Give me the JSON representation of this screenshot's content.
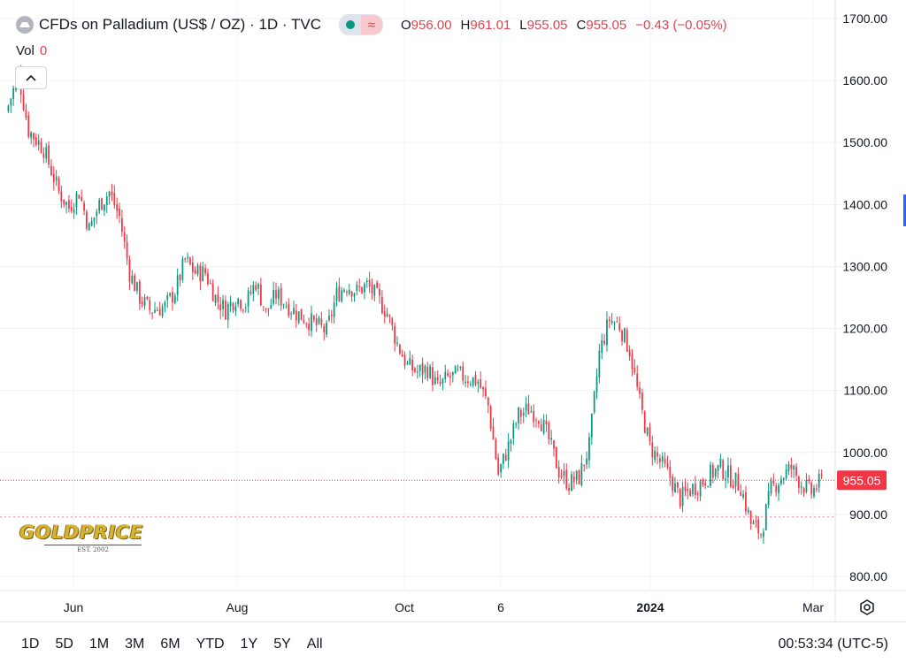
{
  "header": {
    "title": "CFDs on Palladium (US$ / OZ) · 1D · TVC",
    "ohlc": [
      {
        "label": "O",
        "value": "956.00"
      },
      {
        "label": "H",
        "value": "961.01"
      },
      {
        "label": "L",
        "value": "955.05"
      },
      {
        "label": "C",
        "value": "955.05"
      }
    ],
    "change": "−0.43 (−0.05%)",
    "vol_label": "Vol",
    "vol_value": "0"
  },
  "logo": {
    "name": "GOLDPRICE",
    "tagline": "EST. 2002"
  },
  "bottom": {
    "ranges": [
      "1D",
      "5D",
      "1M",
      "3M",
      "6M",
      "YTD",
      "1Y",
      "5Y",
      "All"
    ],
    "clock": "00:53:34 (UTC-5)"
  },
  "colors": {
    "up": "#089981",
    "down": "#f23645",
    "last_price": "#f23645",
    "accent": "#2962ff"
  },
  "chart_data": {
    "type": "candlestick",
    "symbol": "CFDs on Palladium (US$ / OZ)",
    "interval": "1D",
    "ylim": [
      780,
      1710
    ],
    "yticks": [
      800,
      900,
      1000,
      1100,
      1200,
      1300,
      1400,
      1500,
      1600,
      1700
    ],
    "ytick_labels": [
      "800.00",
      "900.00",
      "1000.00",
      "1100.00",
      "1200.00",
      "1300.00",
      "1400.00",
      "1500.00",
      "1600.00",
      "1700.00"
    ],
    "xticks": [
      "Jun",
      "Aug",
      "Oct",
      "6",
      "2024",
      "Mar"
    ],
    "last_price": 955.05,
    "last_price_label": "955.05",
    "reference_line": 896,
    "close_path": [
      [
        0,
        1560
      ],
      [
        4,
        1610
      ],
      [
        8,
        1520
      ],
      [
        14,
        1490
      ],
      [
        20,
        1420
      ],
      [
        24,
        1395
      ],
      [
        28,
        1420
      ],
      [
        32,
        1360
      ],
      [
        36,
        1400
      ],
      [
        40,
        1420
      ],
      [
        44,
        1380
      ],
      [
        48,
        1290
      ],
      [
        52,
        1250
      ],
      [
        56,
        1230
      ],
      [
        62,
        1235
      ],
      [
        66,
        1260
      ],
      [
        70,
        1310
      ],
      [
        74,
        1290
      ],
      [
        78,
        1290
      ],
      [
        82,
        1250
      ],
      [
        86,
        1230
      ],
      [
        90,
        1250
      ],
      [
        94,
        1240
      ],
      [
        98,
        1275
      ],
      [
        102,
        1225
      ],
      [
        106,
        1255
      ],
      [
        110,
        1240
      ],
      [
        114,
        1225
      ],
      [
        118,
        1215
      ],
      [
        122,
        1205
      ],
      [
        126,
        1195
      ],
      [
        130,
        1255
      ],
      [
        134,
        1270
      ],
      [
        138,
        1260
      ],
      [
        142,
        1270
      ],
      [
        146,
        1250
      ],
      [
        150,
        1225
      ],
      [
        154,
        1175
      ],
      [
        158,
        1140
      ],
      [
        162,
        1130
      ],
      [
        166,
        1135
      ],
      [
        170,
        1105
      ],
      [
        174,
        1120
      ],
      [
        178,
        1125
      ],
      [
        182,
        1120
      ],
      [
        186,
        1115
      ],
      [
        190,
        1075
      ],
      [
        194,
        965
      ],
      [
        198,
        1010
      ],
      [
        202,
        1060
      ],
      [
        206,
        1070
      ],
      [
        210,
        1060
      ],
      [
        214,
        1020
      ],
      [
        218,
        970
      ],
      [
        222,
        950
      ],
      [
        226,
        960
      ],
      [
        230,
        1010
      ],
      [
        234,
        1160
      ],
      [
        238,
        1215
      ],
      [
        242,
        1205
      ],
      [
        246,
        1165
      ],
      [
        250,
        1080
      ],
      [
        254,
        1010
      ],
      [
        258,
        985
      ],
      [
        262,
        960
      ],
      [
        266,
        925
      ],
      [
        270,
        940
      ],
      [
        274,
        950
      ],
      [
        278,
        965
      ],
      [
        282,
        975
      ],
      [
        286,
        960
      ],
      [
        290,
        945
      ],
      [
        294,
        885
      ],
      [
        298,
        870
      ],
      [
        302,
        940
      ],
      [
        306,
        960
      ],
      [
        310,
        975
      ],
      [
        314,
        950
      ],
      [
        318,
        935
      ],
      [
        322,
        955
      ]
    ],
    "n_candles": 323
  }
}
